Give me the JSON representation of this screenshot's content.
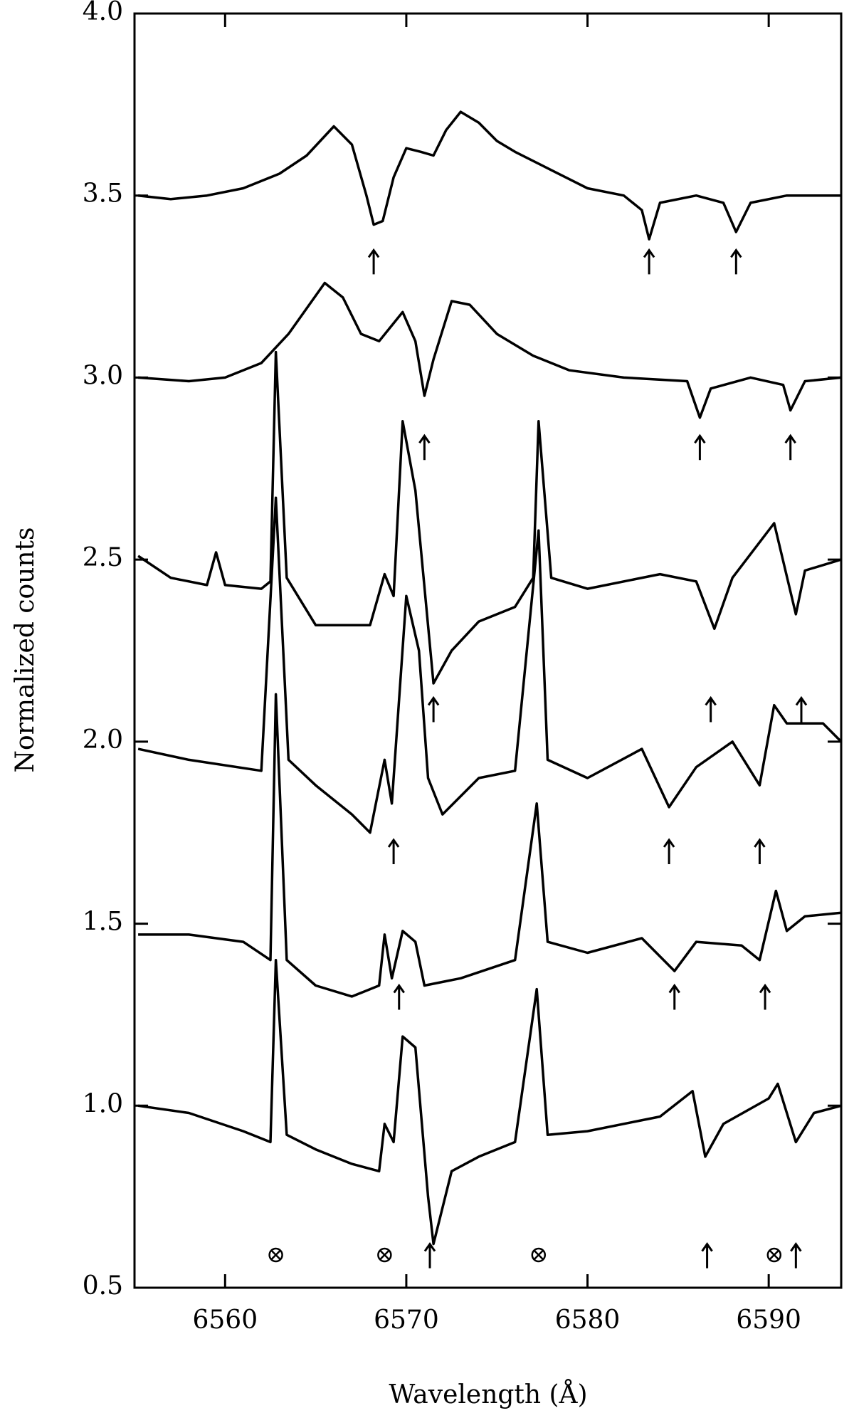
{
  "chart_data": {
    "type": "line",
    "x_label": "Wavelength (Å)",
    "y_label": "Normalized counts",
    "xlim": [
      6555,
      6594
    ],
    "xticks": [
      6560,
      6570,
      6580,
      6590
    ],
    "ylim": [
      0.5,
      4.0
    ],
    "yticks": [
      0.5,
      {
        "value": 1.0,
        "label": "1.0"
      },
      1.5,
      {
        "value": 2.0,
        "label": "2.0"
      },
      2.5,
      {
        "value": 3.0,
        "label": "3.0"
      },
      3.5,
      {
        "value": 4.0,
        "label": "4.0"
      }
    ],
    "grid": false,
    "color": "#000000",
    "series": [
      {
        "color": "#000000",
        "x": [
          6555.2,
          6557,
          6559,
          6561,
          6563,
          6564.5,
          6566,
          6567,
          6567.8,
          6568.2,
          6568.7,
          6569.3,
          6570,
          6570.8,
          6571.5,
          6572.2,
          6573,
          6574,
          6575,
          6576,
          6578,
          6580,
          6582,
          6583,
          6583.4,
          6584,
          6586,
          6587.5,
          6588.2,
          6589,
          6591,
          6594
        ],
        "values": [
          3.5,
          3.49,
          3.5,
          3.52,
          3.56,
          3.61,
          3.69,
          3.64,
          3.5,
          3.42,
          3.43,
          3.55,
          3.63,
          3.62,
          3.61,
          3.68,
          3.73,
          3.7,
          3.65,
          3.62,
          3.57,
          3.52,
          3.5,
          3.46,
          3.38,
          3.48,
          3.5,
          3.48,
          3.4,
          3.48,
          3.5,
          3.5
        ]
      },
      {
        "color": "#000000",
        "x": [
          6555.2,
          6558,
          6560,
          6562,
          6563.5,
          6565.5,
          6566.5,
          6567.5,
          6568.5,
          6569.8,
          6570.5,
          6571,
          6571.5,
          6572.5,
          6573.5,
          6575,
          6577,
          6579,
          6582,
          6585.5,
          6586.2,
          6586.8,
          6589,
          6590.8,
          6591.2,
          6592,
          6594
        ],
        "values": [
          3.0,
          2.99,
          3.0,
          3.04,
          3.12,
          3.26,
          3.22,
          3.12,
          3.1,
          3.18,
          3.1,
          2.95,
          3.05,
          3.21,
          3.2,
          3.12,
          3.06,
          3.02,
          3.0,
          2.99,
          2.89,
          2.97,
          3.0,
          2.98,
          2.91,
          2.99,
          3.0
        ]
      },
      {
        "color": "#000000",
        "x": [
          6555.2,
          6557,
          6559,
          6559.5,
          6560,
          6562,
          6562.5,
          6562.8,
          6563.4,
          6565,
          6568,
          6568.8,
          6569.3,
          6569.8,
          6570.5,
          6571.5,
          6572.5,
          6574,
          6576,
          6577,
          6577.3,
          6578,
          6580,
          6584,
          6586,
          6587,
          6588,
          6590.3,
          6591.5,
          6592,
          6594
        ],
        "values": [
          2.51,
          2.45,
          2.43,
          2.52,
          2.43,
          2.42,
          2.44,
          3.07,
          2.45,
          2.32,
          2.32,
          2.46,
          2.4,
          2.88,
          2.69,
          2.16,
          2.25,
          2.33,
          2.37,
          2.45,
          2.88,
          2.45,
          2.42,
          2.46,
          2.44,
          2.31,
          2.45,
          2.6,
          2.35,
          2.47,
          2.5
        ]
      },
      {
        "color": "#000000",
        "x": [
          6555.2,
          6558,
          6562,
          6562.8,
          6563.5,
          6565,
          6567,
          6568,
          6568.8,
          6569.2,
          6570,
          6570.7,
          6571.2,
          6572,
          6574,
          6576,
          6577.3,
          6577.8,
          6580,
          6583,
          6584.5,
          6586,
          6588,
          6589.5,
          6590.3,
          6591,
          6593,
          6594
        ],
        "values": [
          1.98,
          1.95,
          1.92,
          2.67,
          1.95,
          1.88,
          1.8,
          1.75,
          1.95,
          1.83,
          2.4,
          2.25,
          1.9,
          1.8,
          1.9,
          1.92,
          2.58,
          1.95,
          1.9,
          1.98,
          1.82,
          1.93,
          2.0,
          1.88,
          2.1,
          2.05,
          2.05,
          2.0
        ]
      },
      {
        "color": "#000000",
        "x": [
          6555.2,
          6558,
          6561,
          6562.5,
          6562.8,
          6563.4,
          6565,
          6567,
          6568.5,
          6568.8,
          6569.2,
          6569.8,
          6570.5,
          6571,
          6573,
          6576,
          6577.2,
          6577.8,
          6580,
          6583,
          6584.8,
          6586,
          6588.5,
          6589.5,
          6590.4,
          6591,
          6592,
          6594
        ],
        "values": [
          1.47,
          1.47,
          1.45,
          1.4,
          2.13,
          1.4,
          1.33,
          1.3,
          1.33,
          1.47,
          1.35,
          1.48,
          1.45,
          1.33,
          1.35,
          1.4,
          1.83,
          1.45,
          1.42,
          1.46,
          1.37,
          1.45,
          1.44,
          1.4,
          1.59,
          1.48,
          1.52,
          1.53
        ]
      },
      {
        "color": "#000000",
        "x": [
          6555.2,
          6558,
          6561,
          6562.5,
          6562.8,
          6563.4,
          6565,
          6567,
          6568.5,
          6568.8,
          6569.3,
          6569.8,
          6570.5,
          6571.2,
          6571.5,
          6572.5,
          6574,
          6576,
          6577.2,
          6577.8,
          6580,
          6584,
          6585.8,
          6586.5,
          6587.5,
          6590,
          6590.5,
          6591.5,
          6592.5,
          6594
        ],
        "values": [
          1.0,
          0.98,
          0.93,
          0.9,
          1.4,
          0.92,
          0.88,
          0.84,
          0.82,
          0.95,
          0.9,
          1.19,
          1.16,
          0.75,
          0.62,
          0.82,
          0.86,
          0.9,
          1.32,
          0.92,
          0.93,
          0.97,
          1.04,
          0.86,
          0.95,
          1.02,
          1.06,
          0.9,
          0.98,
          1.0
        ]
      }
    ],
    "arrows": [
      {
        "x": 6568.2,
        "y": 3.35
      },
      {
        "x": 6583.4,
        "y": 3.35
      },
      {
        "x": 6588.2,
        "y": 3.35
      },
      {
        "x": 6571.0,
        "y": 2.84
      },
      {
        "x": 6586.2,
        "y": 2.84
      },
      {
        "x": 6591.2,
        "y": 2.84
      },
      {
        "x": 6571.5,
        "y": 2.12
      },
      {
        "x": 6586.8,
        "y": 2.12
      },
      {
        "x": 6591.8,
        "y": 2.12
      },
      {
        "x": 6569.3,
        "y": 1.73
      },
      {
        "x": 6584.5,
        "y": 1.73
      },
      {
        "x": 6589.5,
        "y": 1.73
      },
      {
        "x": 6569.6,
        "y": 1.33
      },
      {
        "x": 6584.8,
        "y": 1.33
      },
      {
        "x": 6589.8,
        "y": 1.33
      },
      {
        "x": 6571.3,
        "y": 0.62
      },
      {
        "x": 6586.6,
        "y": 0.62
      },
      {
        "x": 6591.5,
        "y": 0.62
      }
    ],
    "crosses": [
      {
        "x": 6562.8,
        "y": 0.59
      },
      {
        "x": 6568.8,
        "y": 0.59
      },
      {
        "x": 6577.3,
        "y": 0.59
      },
      {
        "x": 6590.3,
        "y": 0.59
      }
    ]
  }
}
